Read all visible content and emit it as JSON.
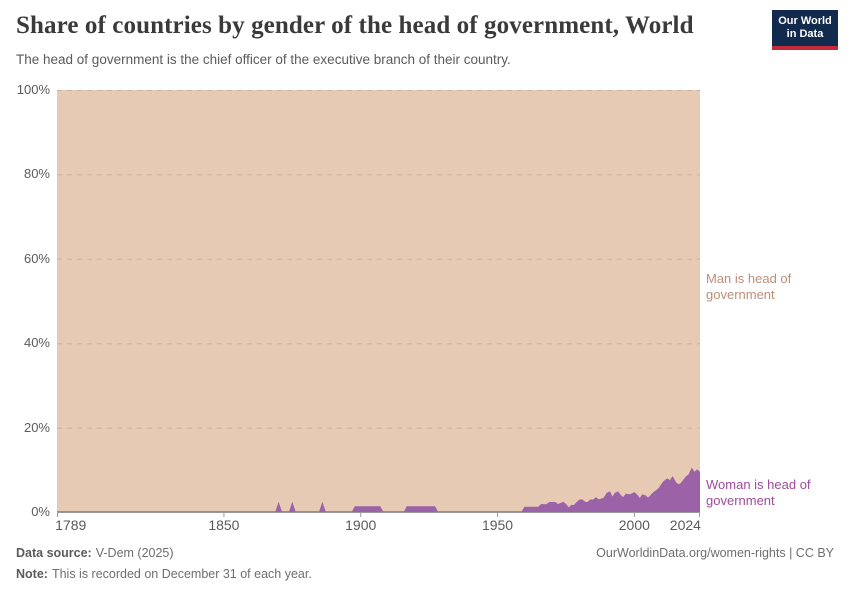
{
  "header": {
    "title": "Share of countries by gender of the head of government, World",
    "subtitle": "The head of government is the chief officer of the executive branch of their country.",
    "logo": {
      "line1": "Our World",
      "line2": "in Data"
    }
  },
  "colors": {
    "man_area": "#e7cab4",
    "woman_area": "#9c62a8",
    "man_label_text": "#bd8e76",
    "woman_label_text": "#9e4a9b",
    "axis_text": "#5b5b5b",
    "axis_line": "#9a9a9a",
    "logo_bg": "#122a4d",
    "logo_accent": "#c42b37",
    "title_text": "#3a3a3a"
  },
  "chart_data": {
    "type": "area",
    "stacked": true,
    "title": "Share of countries by gender of the head of government, World",
    "xlabel": "",
    "ylabel": "",
    "x_range": [
      1789,
      2024
    ],
    "y_range": [
      0,
      100
    ],
    "grid": true,
    "x_ticks": [
      "1789",
      "1850",
      "1900",
      "1950",
      "2000",
      "2024"
    ],
    "x_tick_values": [
      1789,
      1850,
      1900,
      1950,
      2000,
      2024
    ],
    "y_ticks": [
      "0%",
      "20%",
      "40%",
      "60%",
      "80%",
      "100%"
    ],
    "y_tick_values": [
      0,
      20,
      40,
      60,
      80,
      100
    ],
    "legend_position": "right-edge-annotations",
    "series": [
      {
        "name": "Woman is head of government",
        "color": "#9c62a8",
        "unit": "%",
        "points": [
          [
            1789,
            0
          ],
          [
            1868,
            0
          ],
          [
            1869,
            0
          ],
          [
            1870,
            1.9
          ],
          [
            1871,
            0
          ],
          [
            1874,
            0
          ],
          [
            1875,
            1.9
          ],
          [
            1876,
            0
          ],
          [
            1885,
            0
          ],
          [
            1886,
            1.9
          ],
          [
            1887,
            0
          ],
          [
            1897,
            0
          ],
          [
            1898,
            1.2
          ],
          [
            1907,
            1.2
          ],
          [
            1908,
            0
          ],
          [
            1916,
            0
          ],
          [
            1917,
            1.2
          ],
          [
            1927,
            1.2
          ],
          [
            1928,
            0
          ],
          [
            1959,
            0
          ],
          [
            1960,
            1.1
          ],
          [
            1965,
            1.1
          ],
          [
            1966,
            1.7
          ],
          [
            1968,
            1.7
          ],
          [
            1969,
            2.2
          ],
          [
            1971,
            2.2
          ],
          [
            1972,
            1.7
          ],
          [
            1974,
            2.2
          ],
          [
            1975,
            1.7
          ],
          [
            1976,
            0.8
          ],
          [
            1977,
            1.5
          ],
          [
            1978,
            1.5
          ],
          [
            1979,
            2.2
          ],
          [
            1980,
            2.8
          ],
          [
            1981,
            2.8
          ],
          [
            1982,
            2.2
          ],
          [
            1983,
            2.2
          ],
          [
            1984,
            2.8
          ],
          [
            1985,
            2.8
          ],
          [
            1986,
            3.3
          ],
          [
            1987,
            2.8
          ],
          [
            1988,
            3.0
          ],
          [
            1989,
            3.3
          ],
          [
            1990,
            4.4
          ],
          [
            1991,
            4.7
          ],
          [
            1992,
            3.3
          ],
          [
            1993,
            4.4
          ],
          [
            1994,
            4.7
          ],
          [
            1995,
            3.8
          ],
          [
            1996,
            3.3
          ],
          [
            1997,
            4.2
          ],
          [
            1998,
            4.0
          ],
          [
            1999,
            4.2
          ],
          [
            2000,
            4.5
          ],
          [
            2001,
            3.9
          ],
          [
            2002,
            3.0
          ],
          [
            2003,
            4.0
          ],
          [
            2004,
            3.8
          ],
          [
            2005,
            3.2
          ],
          [
            2006,
            3.8
          ],
          [
            2007,
            4.5
          ],
          [
            2008,
            5.0
          ],
          [
            2009,
            5.5
          ],
          [
            2010,
            6.5
          ],
          [
            2011,
            7.3
          ],
          [
            2012,
            7.8
          ],
          [
            2013,
            7.3
          ],
          [
            2014,
            8.2
          ],
          [
            2015,
            7.0
          ],
          [
            2016,
            6.4
          ],
          [
            2017,
            6.6
          ],
          [
            2018,
            7.5
          ],
          [
            2019,
            8.3
          ],
          [
            2020,
            8.8
          ],
          [
            2021,
            10.2
          ],
          [
            2022,
            9.3
          ],
          [
            2023,
            9.9
          ],
          [
            2024,
            9.3
          ]
        ]
      },
      {
        "name": "Man is head of government",
        "color": "#e7cab4",
        "unit": "%",
        "values": "complement-of-woman-series (100 - woman%)"
      }
    ]
  },
  "annotations": {
    "man_label": "Man is head of government",
    "woman_label": "Woman is head of government"
  },
  "footer": {
    "data_source_label": "Data source:",
    "data_source_value": "V-Dem (2025)",
    "link": "OurWorldinData.org/women-rights | CC BY",
    "note_label": "Note:",
    "note_value": "This is recorded on December 31 of each year."
  }
}
